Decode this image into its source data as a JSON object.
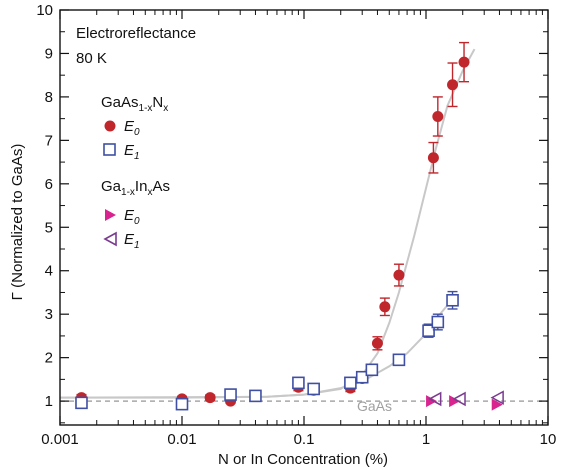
{
  "chart_data": {
    "type": "scatter",
    "x_scale": "log",
    "xlim": [
      0.001,
      10
    ],
    "ylim": [
      0.45,
      10
    ],
    "x_ticks": [
      0.001,
      0.01,
      0.1,
      1,
      10
    ],
    "x_tick_labels": [
      "0.001",
      "0.01",
      "0.1",
      "1",
      "10"
    ],
    "y_ticks": [
      1,
      2,
      3,
      4,
      5,
      6,
      7,
      8,
      9,
      10
    ],
    "y_tick_labels": [
      "1",
      "2",
      "3",
      "4",
      "5",
      "6",
      "7",
      "8",
      "9",
      "10"
    ],
    "xlabel": "N or In Concentration (%)",
    "ylabel": "Γ (Normalized to GaAs)",
    "grid": false,
    "annotations": {
      "title_line1": "Electroreflectance",
      "title_line2": "80 K",
      "group1_label": "GaAs",
      "group1_sub": "1-x",
      "group1_label2": "N",
      "group1_sub2": "x",
      "group2_label": "Ga",
      "group2_sub": "1-x",
      "group2_label2": "In",
      "group2_sub2": "x",
      "group2_label3": "As",
      "e0_label": "E",
      "e0_sub": "0",
      "e1_label": "E",
      "e1_sub": "1",
      "baseline_label": "GaAs"
    },
    "baseline_y": 1.0,
    "colors": {
      "red": "#c0272d",
      "blue": "#3f4fa3",
      "magenta": "#d9248f",
      "purple": "#7a3b8f",
      "fit": "#c8c8c8",
      "baseline": "#a8a8a8"
    },
    "series": [
      {
        "group": "GaAsN",
        "marker": "filled-circle",
        "points": [
          {
            "x": 0.0015,
            "y": 1.08,
            "err": 0.07
          },
          {
            "x": 0.01,
            "y": 1.05,
            "err": 0.06
          },
          {
            "x": 0.017,
            "y": 1.08,
            "err": 0.06
          },
          {
            "x": 0.025,
            "y": 1.0,
            "err": 0.05
          },
          {
            "x": 0.09,
            "y": 1.32,
            "err": 0.08
          },
          {
            "x": 0.12,
            "y": 1.25,
            "err": 0.07
          },
          {
            "x": 0.24,
            "y": 1.3,
            "err": 0.08
          },
          {
            "x": 0.3,
            "y": 1.52,
            "err": 0.1
          },
          {
            "x": 0.4,
            "y": 2.33,
            "err": 0.15
          },
          {
            "x": 0.46,
            "y": 3.17,
            "err": 0.2
          },
          {
            "x": 0.6,
            "y": 3.9,
            "err": 0.25
          },
          {
            "x": 1.15,
            "y": 6.6,
            "err": 0.35
          },
          {
            "x": 1.25,
            "y": 7.55,
            "err": 0.45
          },
          {
            "x": 1.65,
            "y": 8.28,
            "err": 0.5
          },
          {
            "x": 2.05,
            "y": 8.8,
            "err": 0.45
          }
        ]
      },
      {
        "group": "GaAsN",
        "marker": "open-square",
        "points": [
          {
            "x": 0.0015,
            "y": 0.96,
            "err": 0.08
          },
          {
            "x": 0.01,
            "y": 0.93,
            "err": 0.1
          },
          {
            "x": 0.025,
            "y": 1.15,
            "err": 0.12
          },
          {
            "x": 0.04,
            "y": 1.12,
            "err": 0.08
          },
          {
            "x": 0.09,
            "y": 1.42,
            "err": 0.1
          },
          {
            "x": 0.12,
            "y": 1.28,
            "err": 0.08
          },
          {
            "x": 0.24,
            "y": 1.42,
            "err": 0.1
          },
          {
            "x": 0.3,
            "y": 1.55,
            "err": 0.1
          },
          {
            "x": 0.36,
            "y": 1.72,
            "err": 0.1
          },
          {
            "x": 0.6,
            "y": 1.95,
            "err": 0.1
          },
          {
            "x": 1.05,
            "y": 2.62,
            "err": 0.15
          },
          {
            "x": 1.25,
            "y": 2.82,
            "err": 0.18
          },
          {
            "x": 1.65,
            "y": 3.32,
            "err": 0.2
          }
        ]
      },
      {
        "group": "GaInAs",
        "marker": "filled-triangle-right",
        "points": [
          {
            "x": 1.1,
            "y": 1.0
          },
          {
            "x": 1.7,
            "y": 1.0
          },
          {
            "x": 3.8,
            "y": 0.92
          }
        ]
      },
      {
        "group": "GaInAs",
        "marker": "open-triangle-left",
        "points": [
          {
            "x": 1.2,
            "y": 1.05
          },
          {
            "x": 1.9,
            "y": 1.05
          },
          {
            "x": 3.9,
            "y": 1.08
          }
        ]
      }
    ],
    "fit_curves": [
      {
        "series": "E0",
        "points": [
          [
            0.001,
            1.08
          ],
          [
            0.01,
            1.08
          ],
          [
            0.05,
            1.1
          ],
          [
            0.1,
            1.15
          ],
          [
            0.2,
            1.28
          ],
          [
            0.3,
            1.6
          ],
          [
            0.4,
            2.1
          ],
          [
            0.5,
            2.8
          ],
          [
            0.6,
            3.5
          ],
          [
            0.8,
            4.8
          ],
          [
            1.0,
            5.9
          ],
          [
            1.2,
            6.8
          ],
          [
            1.5,
            7.8
          ],
          [
            2.0,
            8.6
          ],
          [
            2.5,
            9.1
          ]
        ]
      },
      {
        "series": "E1",
        "points": [
          [
            0.001,
            1.08
          ],
          [
            0.05,
            1.1
          ],
          [
            0.1,
            1.15
          ],
          [
            0.2,
            1.3
          ],
          [
            0.3,
            1.45
          ],
          [
            0.5,
            1.8
          ],
          [
            0.7,
            2.1
          ],
          [
            1.0,
            2.55
          ],
          [
            1.3,
            3.0
          ],
          [
            1.6,
            3.3
          ]
        ]
      }
    ]
  }
}
